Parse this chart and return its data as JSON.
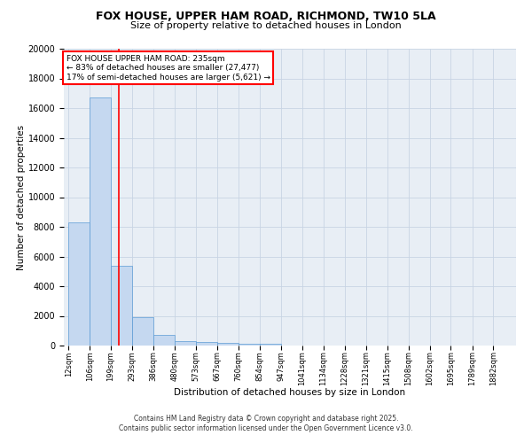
{
  "title1": "FOX HOUSE, UPPER HAM ROAD, RICHMOND, TW10 5LA",
  "title2": "Size of property relative to detached houses in London",
  "xlabel": "Distribution of detached houses by size in London",
  "ylabel": "Number of detached properties",
  "bins": [
    12,
    106,
    199,
    293,
    386,
    480,
    573,
    667,
    760,
    854,
    947,
    1041,
    1134,
    1228,
    1321,
    1415,
    1508,
    1602,
    1695,
    1789,
    1882
  ],
  "bin_labels": [
    "12sqm",
    "106sqm",
    "199sqm",
    "293sqm",
    "386sqm",
    "480sqm",
    "573sqm",
    "667sqm",
    "760sqm",
    "854sqm",
    "947sqm",
    "1041sqm",
    "1134sqm",
    "1228sqm",
    "1321sqm",
    "1415sqm",
    "1508sqm",
    "1602sqm",
    "1695sqm",
    "1789sqm",
    "1882sqm"
  ],
  "counts": [
    8300,
    16700,
    5400,
    1900,
    700,
    310,
    210,
    150,
    120,
    100,
    0,
    0,
    0,
    0,
    0,
    0,
    0,
    0,
    0,
    0
  ],
  "bar_color": "#c5d8f0",
  "bar_edge_color": "#5b9bd5",
  "red_line_x": 235,
  "ylim": [
    0,
    20000
  ],
  "yticks": [
    0,
    2000,
    4000,
    6000,
    8000,
    10000,
    12000,
    14000,
    16000,
    18000,
    20000
  ],
  "annotation_text": "FOX HOUSE UPPER HAM ROAD: 235sqm\n← 83% of detached houses are smaller (27,477)\n17% of semi-detached houses are larger (5,621) →",
  "footer1": "Contains HM Land Registry data © Crown copyright and database right 2025.",
  "footer2": "Contains public sector information licensed under the Open Government Licence v3.0.",
  "bg_color": "#ffffff",
  "plot_bg_color": "#e8eef5",
  "grid_color": "#c8d4e4"
}
